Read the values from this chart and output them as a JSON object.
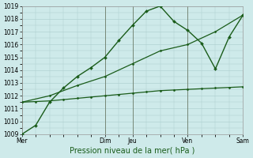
{
  "xlabel": "Pression niveau de la mer( hPa )",
  "ylim": [
    1009,
    1019
  ],
  "yticks": [
    1009,
    1010,
    1011,
    1012,
    1013,
    1014,
    1015,
    1016,
    1017,
    1018,
    1019
  ],
  "xtick_labels": [
    "Mer",
    "Dim",
    "Jeu",
    "Ven",
    "Sam"
  ],
  "xtick_positions": [
    0,
    3,
    4,
    6,
    8
  ],
  "vlines": [
    0,
    3,
    4,
    6,
    8
  ],
  "background_color": "#ceeaea",
  "grid_color": "#aacccc",
  "lines": [
    {
      "x": [
        0,
        0.5,
        1.0,
        1.5,
        2.0,
        2.5,
        3.0,
        3.5,
        4.0,
        4.5,
        5.0,
        5.5,
        6.0,
        6.5,
        7.0,
        7.5,
        8.0
      ],
      "y": [
        1009.0,
        1009.7,
        1011.5,
        1012.6,
        1013.5,
        1014.2,
        1015.0,
        1016.3,
        1017.5,
        1018.6,
        1019.0,
        1017.8,
        1017.1,
        1016.1,
        1014.1,
        1016.6,
        1018.3
      ],
      "color": "#1a5c1a",
      "lw": 1.0,
      "marker": "D",
      "ms": 2.0
    },
    {
      "x": [
        0,
        0.5,
        1.0,
        1.5,
        2.0,
        2.5,
        3.0,
        3.5,
        4.0,
        4.5,
        5.0,
        5.5,
        6.0,
        6.5,
        7.0,
        7.5,
        8.0
      ],
      "y": [
        1011.5,
        1011.55,
        1011.6,
        1011.7,
        1011.8,
        1011.9,
        1012.0,
        1012.1,
        1012.2,
        1012.3,
        1012.4,
        1012.45,
        1012.5,
        1012.55,
        1012.6,
        1012.65,
        1012.7
      ],
      "color": "#1a5c1a",
      "lw": 0.9,
      "marker": "D",
      "ms": 1.5
    },
    {
      "x": [
        0,
        1,
        2,
        3,
        4,
        5,
        6,
        7,
        8
      ],
      "y": [
        1011.5,
        1012.0,
        1012.8,
        1013.5,
        1014.5,
        1015.5,
        1016.0,
        1017.0,
        1018.3
      ],
      "color": "#1a5c1a",
      "lw": 0.9,
      "marker": "D",
      "ms": 1.5
    }
  ],
  "spine_color": "#999999",
  "tick_fontsize": 5.5,
  "xlabel_fontsize": 7.0
}
